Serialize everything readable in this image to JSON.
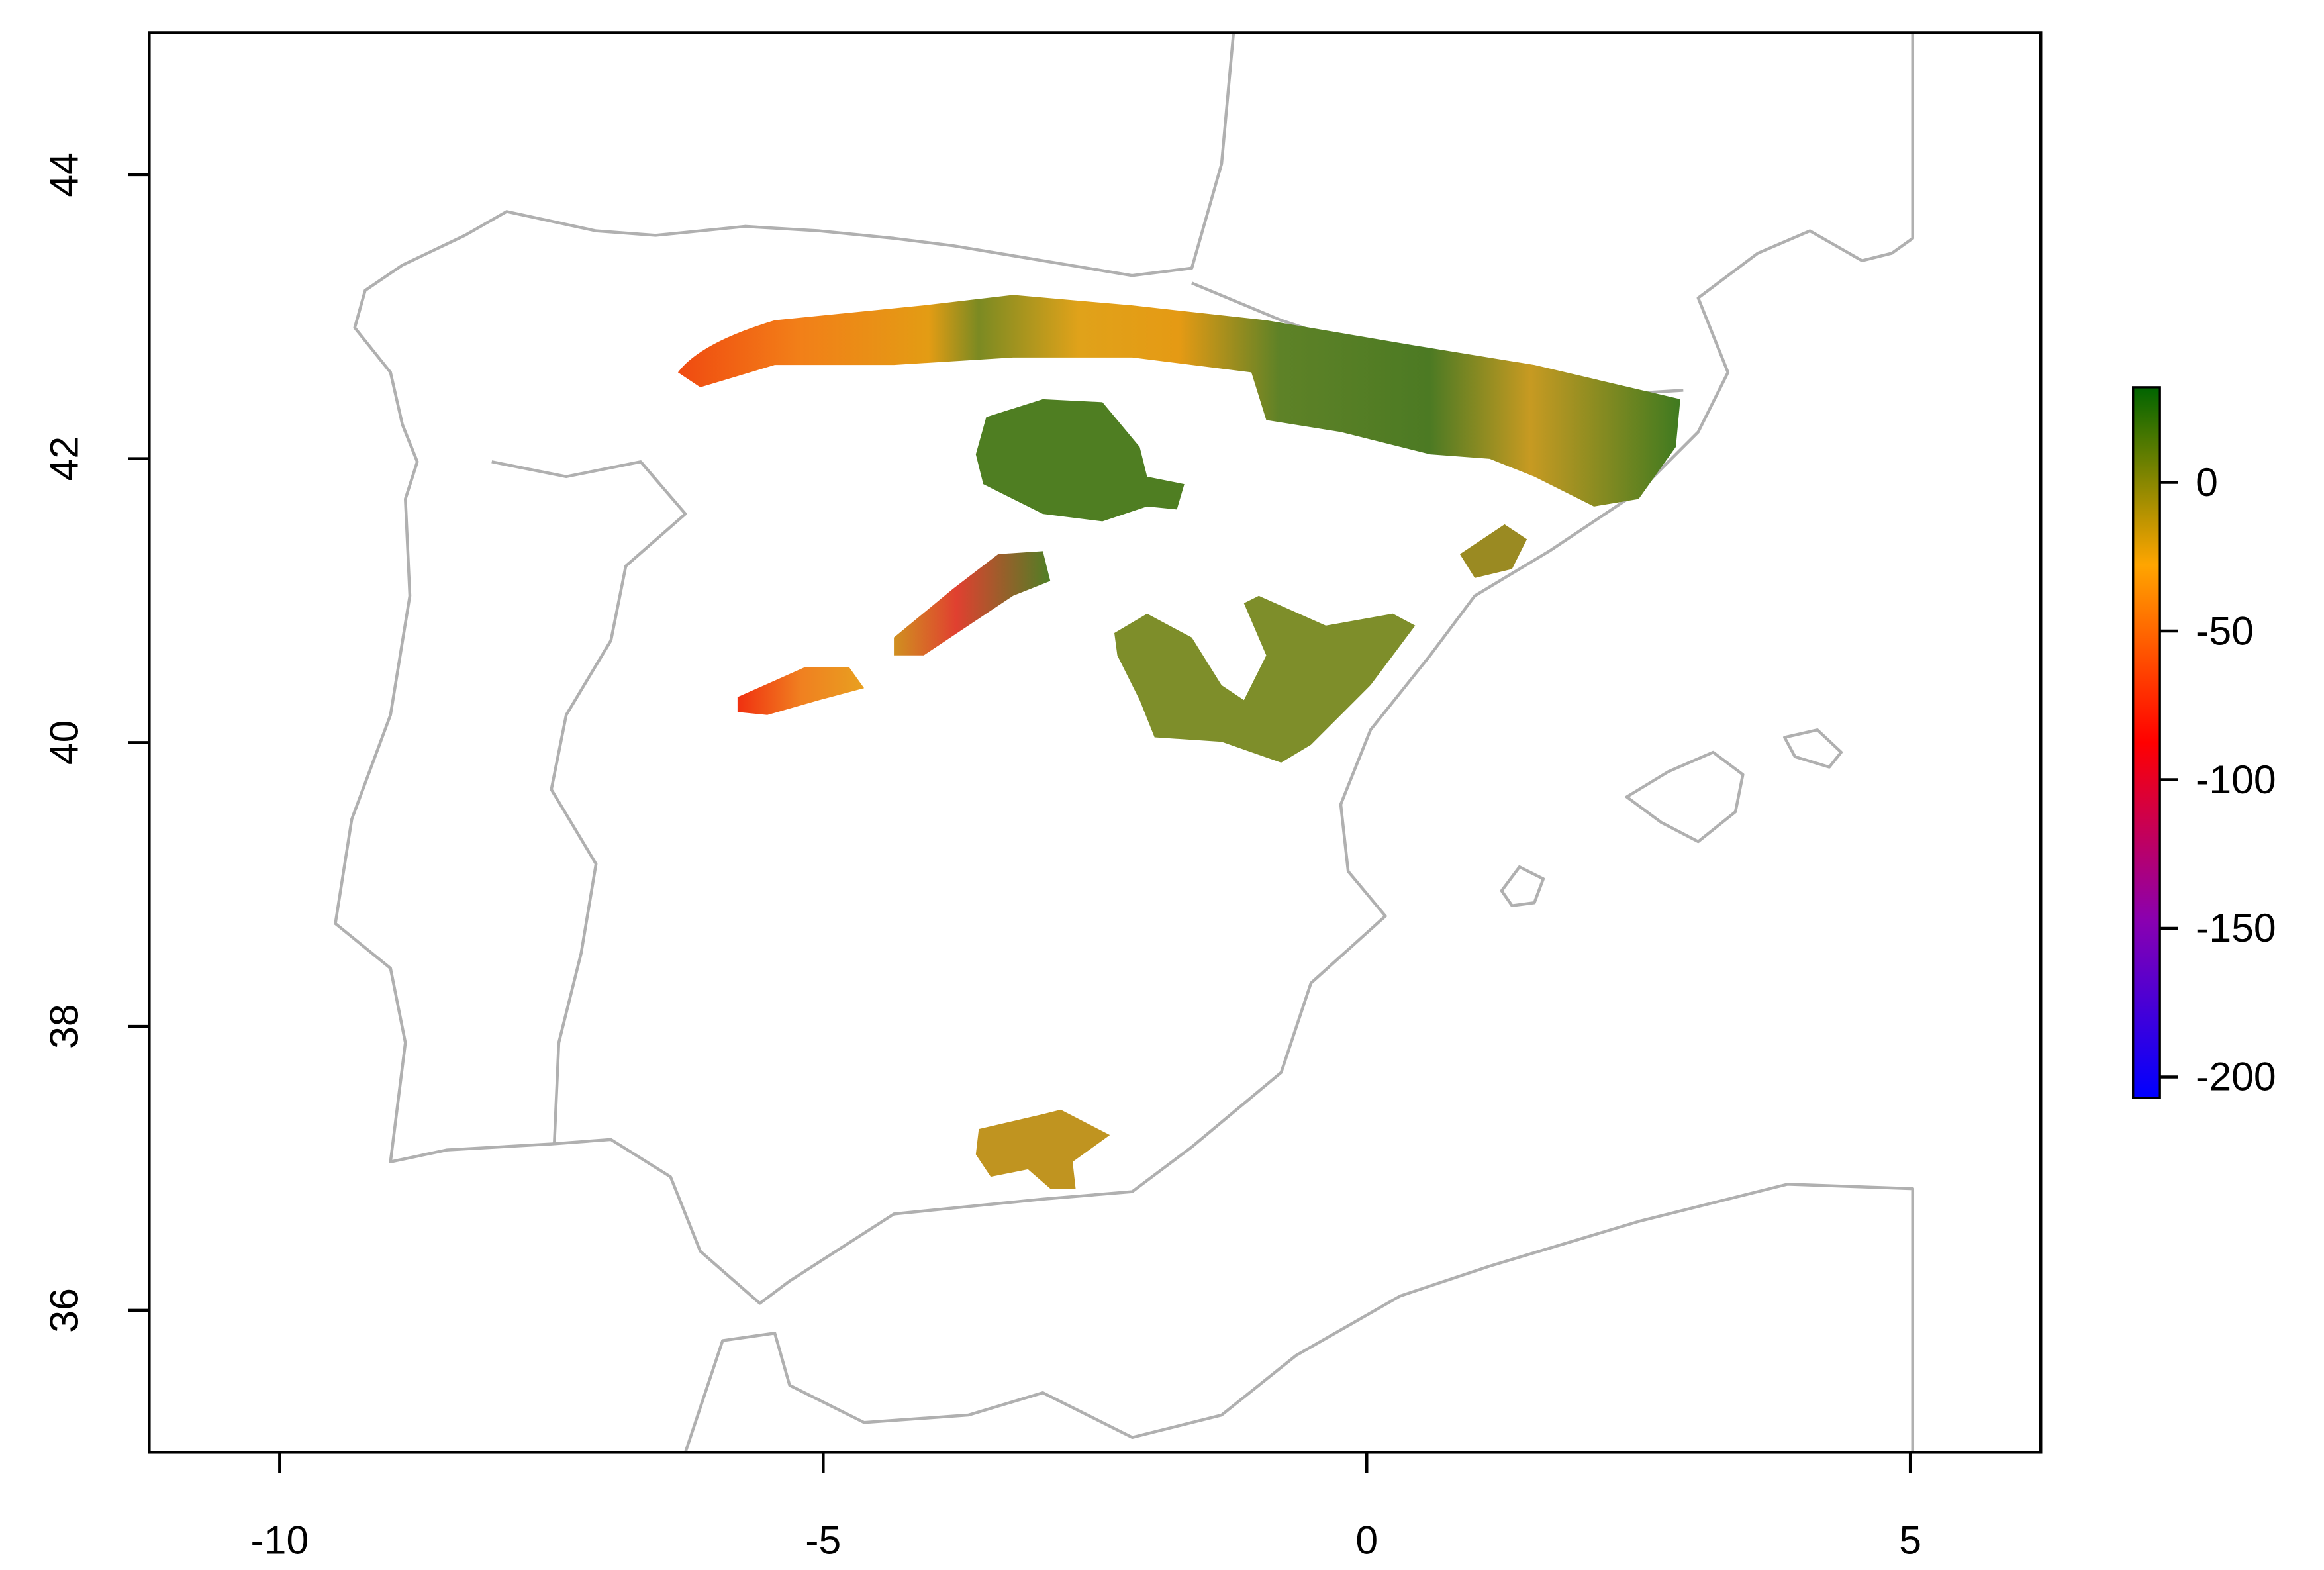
{
  "chart_data": {
    "type": "map",
    "xlim": [
      -11.2,
      6.2
    ],
    "ylim": [
      35,
      45
    ],
    "xticks": [
      -10,
      -5,
      0,
      5
    ],
    "yticks": [
      36,
      38,
      40,
      42,
      44
    ],
    "colorbar": {
      "lim": [
        -207,
        32
      ],
      "ticks": [
        0,
        -50,
        -100,
        -150,
        -200
      ],
      "colors": [
        "#0000ff",
        "#8a00b0",
        "#ff0000",
        "#ffa500",
        "#006400"
      ]
    }
  }
}
